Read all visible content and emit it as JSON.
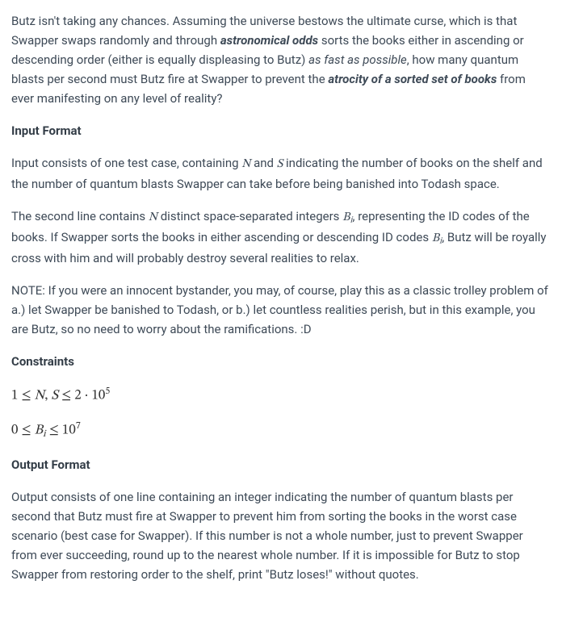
{
  "intro": {
    "part1": "Butz isn't taking any chances. Assuming the universe bestows the ultimate curse, which is that Swapper swaps randomly and through ",
    "em1": "astronomical odds",
    "part2": " sorts the books either in ascending or descending order (either is equally displeasing to Butz) ",
    "it1": "as fast as possible",
    "part3": ", how many quantum blasts per second must Butz fire at Swapper to prevent the ",
    "em2": "atrocity of a sorted set of books",
    "part4": " from ever manifesting on any level of reality?"
  },
  "headings": {
    "input": "Input Format",
    "constraints": "Constraints",
    "output": "Output Format"
  },
  "input_p1": {
    "a": "Input consists of one test case, containing ",
    "N": "N",
    "b": " and ",
    "S": "S",
    "c": " indicating the number of books on the shelf and the number of quantum blasts Swapper can take before being banished into Todash space."
  },
  "input_p2": {
    "a": "The second line contains ",
    "N": "N",
    "b": " distinct space-separated integers ",
    "Bi": "B",
    "Bi_sub": "i",
    "c": ", representing the ID codes of the books. If Swapper sorts the books in either ascending or descending ID codes ",
    "d": ", Butz will be royally cross with him and will probably destroy several realities to relax."
  },
  "note": "NOTE: If you were an innocent bystander, you may, of course, play this as a classic trolley problem of a.) let Swapper be banished to Todash, or b.) let countless realities perish, but in this example, you are Butz, so no need to worry about the ramifications. :D",
  "constraints": {
    "line1": {
      "a": "1 ≤ ",
      "N": "N",
      "comma": ", ",
      "S": "S",
      "b": " ≤ 2 · 10",
      "exp1": "5"
    },
    "line2": {
      "a": "0 ≤ ",
      "B": "B",
      "Bsub": "i",
      "b": " ≤ 10",
      "exp2": "7"
    }
  },
  "output_p": "Output consists of one line containing an integer indicating the number of quantum blasts per second that Butz must fire at Swapper to prevent him from sorting the books in the worst case scenario (best case for Swapper). If this number is not a whole number, just to prevent Swapper from ever succeeding, round up to the nearest whole number. If it is impossible for Butz to stop Swapper from restoring order to the shelf, print \"Butz loses!\" without quotes."
}
